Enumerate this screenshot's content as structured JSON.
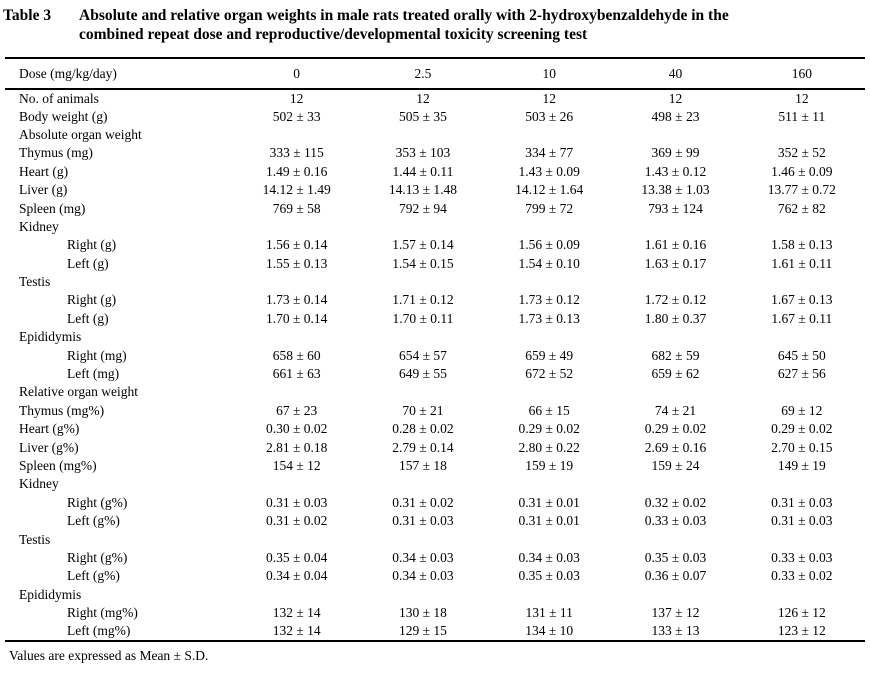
{
  "title": {
    "label": "Table 3",
    "line1": "Absolute and relative organ weights in male rats treated orally with 2-hydroxybenzaldehyde in the",
    "line2": "combined repeat dose and reproductive/developmental toxicity screening test"
  },
  "table": {
    "header": {
      "label": "Dose (mg/kg/day)",
      "doses": [
        "0",
        "2.5",
        "10",
        "40",
        "160"
      ]
    },
    "rows": [
      {
        "label": "No. of animals",
        "indent": 0,
        "values": [
          "12",
          "12",
          "12",
          "12",
          "12"
        ]
      },
      {
        "label": "Body weight (g)",
        "indent": 0,
        "values": [
          "502 ± 33",
          "505 ± 35",
          "503 ± 26",
          "498 ± 23",
          "511 ± 11"
        ]
      },
      {
        "label": "Absolute organ weight",
        "indent": 0,
        "values": []
      },
      {
        "label": "Thymus (mg)",
        "indent": 0,
        "values": [
          "333 ± 115",
          "353 ± 103",
          "334 ± 77",
          "369 ± 99",
          "352 ± 52"
        ]
      },
      {
        "label": "Heart (g)",
        "indent": 0,
        "values": [
          "1.49 ± 0.16",
          "1.44 ± 0.11",
          "1.43 ± 0.09",
          "1.43 ± 0.12",
          "1.46 ± 0.09"
        ]
      },
      {
        "label": "Liver (g)",
        "indent": 0,
        "values": [
          "14.12 ± 1.49",
          "14.13 ± 1.48",
          "14.12 ± 1.64",
          "13.38 ± 1.03",
          "13.77 ± 0.72"
        ]
      },
      {
        "label": "Spleen (mg)",
        "indent": 0,
        "values": [
          "769 ± 58",
          "792 ± 94",
          "799 ± 72",
          "793 ± 124",
          "762 ± 82"
        ]
      },
      {
        "label": "Kidney",
        "indent": 0,
        "values": []
      },
      {
        "label": "Right (g)",
        "indent": 1,
        "values": [
          "1.56 ± 0.14",
          "1.57 ± 0.14",
          "1.56 ± 0.09",
          "1.61 ± 0.16",
          "1.58 ± 0.13"
        ]
      },
      {
        "label": "Left (g)",
        "indent": 1,
        "values": [
          "1.55 ± 0.13",
          "1.54 ± 0.15",
          "1.54 ± 0.10",
          "1.63 ± 0.17",
          "1.61 ± 0.11"
        ]
      },
      {
        "label": "Testis",
        "indent": 0,
        "values": []
      },
      {
        "label": "Right (g)",
        "indent": 1,
        "values": [
          "1.73 ± 0.14",
          "1.71 ± 0.12",
          "1.73 ± 0.12",
          "1.72 ± 0.12",
          "1.67 ± 0.13"
        ]
      },
      {
        "label": "Left (g)",
        "indent": 1,
        "values": [
          "1.70 ± 0.14",
          "1.70 ± 0.11",
          "1.73 ± 0.13",
          "1.80 ± 0.37",
          "1.67 ± 0.11"
        ]
      },
      {
        "label": "Epididymis",
        "indent": 0,
        "values": []
      },
      {
        "label": "Right (mg)",
        "indent": 1,
        "values": [
          "658 ± 60",
          "654 ± 57",
          "659 ± 49",
          "682 ± 59",
          "645 ± 50"
        ]
      },
      {
        "label": "Left (mg)",
        "indent": 1,
        "values": [
          "661 ± 63",
          "649 ± 55",
          "672 ± 52",
          "659 ± 62",
          "627 ± 56"
        ]
      },
      {
        "label": "Relative organ weight",
        "indent": 0,
        "values": []
      },
      {
        "label": "Thymus (mg%)",
        "indent": 0,
        "values": [
          "67 ± 23",
          "70 ± 21",
          "66 ± 15",
          "74 ± 21",
          "69 ± 12"
        ]
      },
      {
        "label": "Heart (g%)",
        "indent": 0,
        "values": [
          "0.30 ± 0.02",
          "0.28 ± 0.02",
          "0.29 ± 0.02",
          "0.29 ± 0.02",
          "0.29 ± 0.02"
        ]
      },
      {
        "label": "Liver (g%)",
        "indent": 0,
        "values": [
          "2.81 ± 0.18",
          "2.79 ± 0.14",
          "2.80 ± 0.22",
          "2.69 ± 0.16",
          "2.70 ± 0.15"
        ]
      },
      {
        "label": "Spleen (mg%)",
        "indent": 0,
        "values": [
          "154 ± 12",
          "157 ± 18",
          "159 ± 19",
          "159 ± 24",
          "149 ± 19"
        ]
      },
      {
        "label": "Kidney",
        "indent": 0,
        "values": []
      },
      {
        "label": "Right (g%)",
        "indent": 1,
        "values": [
          "0.31 ± 0.03",
          "0.31 ± 0.02",
          "0.31 ± 0.01",
          "0.32 ± 0.02",
          "0.31 ± 0.03"
        ]
      },
      {
        "label": "Left (g%)",
        "indent": 1,
        "values": [
          "0.31 ± 0.02",
          "0.31 ± 0.03",
          "0.31 ± 0.01",
          "0.33 ± 0.03",
          "0.31 ± 0.03"
        ]
      },
      {
        "label": "Testis",
        "indent": 0,
        "values": []
      },
      {
        "label": "Right (g%)",
        "indent": 1,
        "values": [
          "0.35 ± 0.04",
          "0.34 ± 0.03",
          "0.34 ± 0.03",
          "0.35 ± 0.03",
          "0.33 ± 0.03"
        ]
      },
      {
        "label": "Left (g%)",
        "indent": 1,
        "values": [
          "0.34 ± 0.04",
          "0.34 ± 0.03",
          "0.35 ± 0.03",
          "0.36 ± 0.07",
          "0.33 ± 0.02"
        ]
      },
      {
        "label": "Epididymis",
        "indent": 0,
        "values": []
      },
      {
        "label": "Right (mg%)",
        "indent": 1,
        "values": [
          "132 ± 14",
          "130 ± 18",
          "131 ± 11",
          "137 ± 12",
          "126 ± 12"
        ]
      },
      {
        "label": "Left (mg%)",
        "indent": 1,
        "values": [
          "132 ± 14",
          "129 ± 15",
          "134 ± 10",
          "133 ± 13",
          "123 ± 12"
        ]
      }
    ]
  },
  "footnote": "Values are expressed as Mean ± S.D.",
  "colors": {
    "background": "#ffffff",
    "text": "#000000",
    "rule": "#000000"
  }
}
